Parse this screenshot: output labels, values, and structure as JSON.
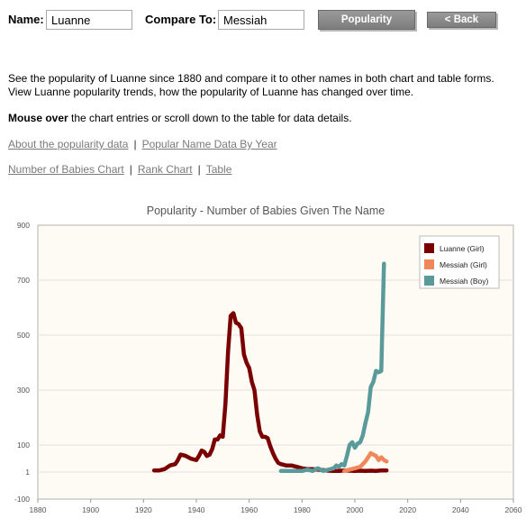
{
  "form": {
    "name_label": "Name:",
    "name_value": "Luanne",
    "compare_label": "Compare To:",
    "compare_value": "Messiah",
    "popularity_button": "Popularity",
    "back_button": "< Back"
  },
  "description": {
    "line1": "See the popularity of Luanne since 1880 and compare it to other names in both chart and table forms.",
    "line2": "View Luanne popularity trends, how the popularity of Luanne has changed over time.",
    "mouse_bold": "Mouse over",
    "mouse_rest": " the chart entries or scroll down to the table for data details."
  },
  "links": {
    "row1": [
      "About the popularity data",
      "Popular Name Data By Year"
    ],
    "row2": [
      "Number of Babies Chart",
      "Rank Chart",
      "Table"
    ],
    "separator": "|"
  },
  "chart_data": {
    "type": "line",
    "title": "Popularity - Number of Babies Given The Name",
    "xlabel": "",
    "ylabel": "",
    "xlim": [
      1880,
      2060
    ],
    "x_ticks": [
      1880,
      1900,
      1920,
      1940,
      1960,
      1980,
      2000,
      2020,
      2040,
      2060
    ],
    "y_ticks": [
      900,
      700,
      500,
      300,
      100,
      1,
      -100
    ],
    "ylim": [
      -100,
      900
    ],
    "grid": true,
    "legend_position": "top-right",
    "background": "#fdfbf3",
    "series": [
      {
        "name": "Luanne (Girl)",
        "color": "#7a0000",
        "points": [
          [
            1924,
            7
          ],
          [
            1926,
            7
          ],
          [
            1928,
            12
          ],
          [
            1930,
            25
          ],
          [
            1932,
            30
          ],
          [
            1933,
            45
          ],
          [
            1934,
            65
          ],
          [
            1936,
            60
          ],
          [
            1938,
            50
          ],
          [
            1940,
            45
          ],
          [
            1941,
            60
          ],
          [
            1942,
            80
          ],
          [
            1943,
            75
          ],
          [
            1944,
            60
          ],
          [
            1945,
            65
          ],
          [
            1946,
            85
          ],
          [
            1947,
            120
          ],
          [
            1948,
            120
          ],
          [
            1949,
            135
          ],
          [
            1950,
            130
          ],
          [
            1951,
            250
          ],
          [
            1952,
            440
          ],
          [
            1953,
            570
          ],
          [
            1954,
            580
          ],
          [
            1955,
            545
          ],
          [
            1956,
            540
          ],
          [
            1957,
            525
          ],
          [
            1958,
            430
          ],
          [
            1959,
            400
          ],
          [
            1960,
            380
          ],
          [
            1961,
            330
          ],
          [
            1962,
            300
          ],
          [
            1963,
            210
          ],
          [
            1964,
            150
          ],
          [
            1965,
            130
          ],
          [
            1966,
            130
          ],
          [
            1967,
            125
          ],
          [
            1968,
            95
          ],
          [
            1969,
            70
          ],
          [
            1970,
            50
          ],
          [
            1971,
            35
          ],
          [
            1972,
            30
          ],
          [
            1974,
            25
          ],
          [
            1976,
            25
          ],
          [
            1978,
            20
          ],
          [
            1980,
            15
          ],
          [
            1982,
            12
          ],
          [
            1984,
            12
          ],
          [
            1986,
            10
          ],
          [
            1988,
            8
          ],
          [
            1990,
            6
          ],
          [
            1992,
            5
          ],
          [
            1994,
            5
          ],
          [
            1996,
            7
          ],
          [
            1998,
            6
          ],
          [
            2000,
            5
          ],
          [
            2002,
            6
          ],
          [
            2004,
            5
          ],
          [
            2006,
            6
          ],
          [
            2008,
            5
          ],
          [
            2010,
            7
          ],
          [
            2012,
            7
          ]
        ]
      },
      {
        "name": "Messiah (Girl)",
        "color": "#f0875a",
        "points": [
          [
            1996,
            5
          ],
          [
            1998,
            10
          ],
          [
            2000,
            15
          ],
          [
            2002,
            20
          ],
          [
            2004,
            40
          ],
          [
            2005,
            55
          ],
          [
            2006,
            70
          ],
          [
            2007,
            65
          ],
          [
            2008,
            60
          ],
          [
            2009,
            45
          ],
          [
            2010,
            55
          ],
          [
            2011,
            45
          ],
          [
            2012,
            40
          ]
        ]
      },
      {
        "name": "Messiah (Boy)",
        "color": "#5a9a9a",
        "points": [
          [
            1972,
            5
          ],
          [
            1974,
            5
          ],
          [
            1976,
            5
          ],
          [
            1978,
            5
          ],
          [
            1980,
            5
          ],
          [
            1982,
            10
          ],
          [
            1984,
            5
          ],
          [
            1986,
            15
          ],
          [
            1988,
            5
          ],
          [
            1990,
            10
          ],
          [
            1992,
            15
          ],
          [
            1993,
            25
          ],
          [
            1994,
            20
          ],
          [
            1995,
            30
          ],
          [
            1996,
            25
          ],
          [
            1997,
            60
          ],
          [
            1998,
            100
          ],
          [
            1999,
            110
          ],
          [
            2000,
            90
          ],
          [
            2001,
            105
          ],
          [
            2002,
            110
          ],
          [
            2003,
            135
          ],
          [
            2004,
            180
          ],
          [
            2005,
            220
          ],
          [
            2006,
            310
          ],
          [
            2007,
            330
          ],
          [
            2008,
            370
          ],
          [
            2009,
            365
          ],
          [
            2010,
            370
          ],
          [
            2011,
            760
          ]
        ]
      }
    ]
  }
}
